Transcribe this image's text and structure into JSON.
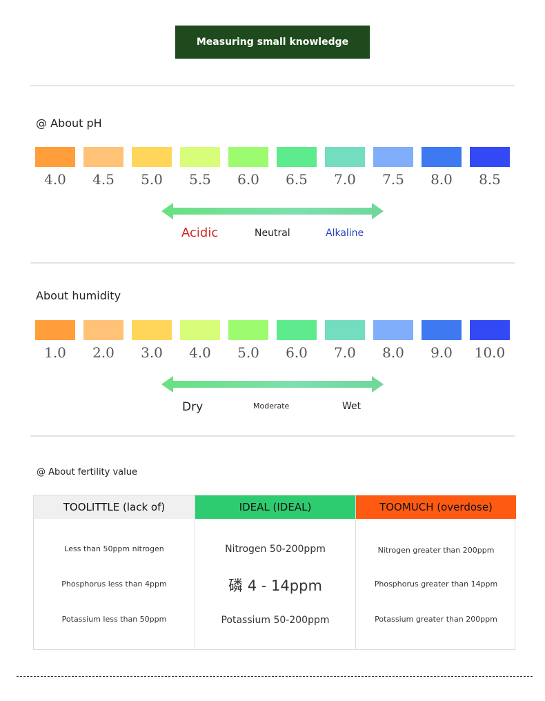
{
  "banner": {
    "title": "Measuring small knowledge",
    "bg": "#1e4a1e"
  },
  "swatch_colors": [
    "#ff9e3b",
    "#ffc276",
    "#ffd65a",
    "#d8fd7b",
    "#9dfb70",
    "#5deb8d",
    "#74dcbf",
    "#80aefa",
    "#3f79f2",
    "#3249f5"
  ],
  "ph": {
    "title": "@ About pH",
    "values": [
      "4.0",
      "4.5",
      "5.0",
      "5.5",
      "6.0",
      "6.5",
      "7.0",
      "7.5",
      "8.0",
      "8.5"
    ],
    "scale": {
      "left": "Acidic",
      "middle": "Neutral",
      "right": "Alkaline"
    },
    "scale_colors": {
      "left": "#d02626",
      "middle": "#222222",
      "right": "#2a3fc2"
    }
  },
  "humidity": {
    "title": "About humidity",
    "values": [
      "1.0",
      "2.0",
      "3.0",
      "4.0",
      "5.0",
      "6.0",
      "7.0",
      "8.0",
      "9.0",
      "10.0"
    ],
    "scale": {
      "left": "Dry",
      "middle": "Moderate",
      "right": "Wet"
    }
  },
  "arrow_gradient": [
    "#69e07f",
    "#7de0ad",
    "#6fd79a"
  ],
  "fertility": {
    "title": "@ About fertility value",
    "columns": [
      {
        "header": "TOOLITTLE (lack of)",
        "header_bg": "#f0f0f0",
        "rows": [
          "Less than 50ppm nitrogen",
          "Phosphorus less than 4ppm",
          "Potassium less than 50ppm"
        ]
      },
      {
        "header": "IDEAL (IDEAL)",
        "header_bg": "#2ecc71",
        "rows": [
          "Nitrogen 50-200ppm",
          "磷  4 - 14ppm",
          "Potassium 50-200ppm"
        ]
      },
      {
        "header": "TOOMUCH (overdose)",
        "header_bg": "#ff5a12",
        "rows": [
          "Nitrogen greater than 200ppm",
          "Phosphorus greater than 14ppm",
          "Potassium greater than 200ppm"
        ]
      }
    ]
  }
}
